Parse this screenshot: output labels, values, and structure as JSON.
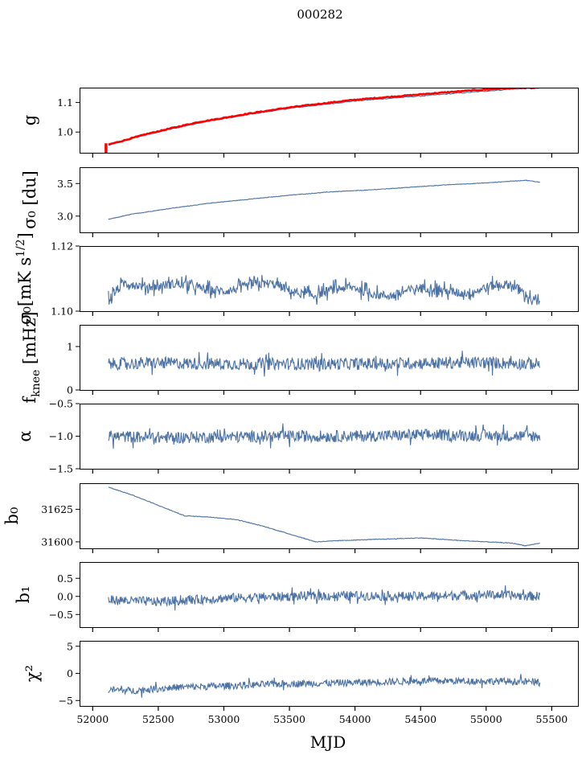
{
  "figure": {
    "title": "000282",
    "xlabel": "MJD",
    "xlim": [
      51900,
      55700
    ],
    "xticks": [
      52000,
      52500,
      53000,
      53500,
      54000,
      54500,
      55000,
      55500
    ],
    "x_range": [
      52120,
      55410
    ]
  },
  "colors": {
    "series": "#4c72a4",
    "overlay": "#ff0000"
  },
  "chart_data": [
    {
      "type": "line",
      "ylabel": "g",
      "ylim": [
        0.93,
        1.15
      ],
      "yticks": [
        1.0,
        1.1
      ],
      "ytick_labels": [
        "1.0",
        "1.1"
      ],
      "series": [
        {
          "x": [
            52120,
            52200,
            52400,
            52600,
            52800,
            53000,
            53200,
            53500,
            53800,
            54000,
            54300,
            54600,
            54900,
            55200,
            55410
          ],
          "values": [
            0.955,
            0.965,
            0.99,
            1.01,
            1.03,
            1.045,
            1.06,
            1.08,
            1.095,
            1.105,
            1.115,
            1.125,
            1.135,
            1.145,
            1.148
          ]
        },
        {
          "x": [
            52120,
            52200,
            52400,
            52600,
            52800,
            53000,
            53200,
            53500,
            53800,
            54000,
            54300,
            54600,
            54900,
            55200,
            55410
          ],
          "values": [
            0.958,
            0.967,
            0.992,
            1.013,
            1.033,
            1.048,
            1.063,
            1.083,
            1.099,
            1.109,
            1.12,
            1.131,
            1.141,
            1.149,
            1.15
          ]
        }
      ]
    },
    {
      "type": "line",
      "ylabel": "σ₀ [du]",
      "ylim": [
        2.75,
        3.75
      ],
      "yticks": [
        3.0,
        3.5
      ],
      "ytick_labels": [
        "3.0",
        "3.5"
      ],
      "series": [
        {
          "x": [
            52120,
            52300,
            52600,
            52900,
            53200,
            53500,
            53800,
            54100,
            54400,
            54700,
            55000,
            55300,
            55410
          ],
          "values": [
            2.95,
            3.03,
            3.12,
            3.2,
            3.26,
            3.32,
            3.37,
            3.4,
            3.44,
            3.48,
            3.51,
            3.55,
            3.52
          ]
        }
      ]
    },
    {
      "type": "line",
      "ylabel": "σ₀[mK s^1/2]",
      "ylim": [
        1.1,
        1.12
      ],
      "yticks": [
        1.1,
        1.12
      ],
      "ytick_labels": [
        "1.10",
        "1.12"
      ],
      "series": [
        {
          "x": [
            52120,
            52250,
            52500,
            52800,
            53100,
            53400,
            53700,
            54000,
            54300,
            54600,
            54900,
            55200,
            55410
          ],
          "values": [
            1.103,
            1.109,
            1.108,
            1.107,
            1.107,
            1.108,
            1.105,
            1.107,
            1.105,
            1.107,
            1.106,
            1.108,
            1.103
          ]
        }
      ]
    },
    {
      "type": "line",
      "ylabel": "f_knee [mHz]",
      "ylim": [
        0,
        1.5
      ],
      "yticks": [
        0,
        1
      ],
      "ytick_labels": [
        "0",
        "1"
      ],
      "series": [
        {
          "x": [
            52120,
            52500,
            53000,
            53500,
            54000,
            54500,
            55000,
            55410
          ],
          "values": [
            0.6,
            0.62,
            0.6,
            0.6,
            0.6,
            0.62,
            0.63,
            0.6
          ]
        }
      ]
    },
    {
      "type": "line",
      "ylabel": "α",
      "ylim": [
        -1.5,
        -0.5
      ],
      "yticks": [
        -1.5,
        -1.0,
        -0.5
      ],
      "ytick_labels": [
        "−1.5",
        "−1.0",
        "−0.5"
      ],
      "series": [
        {
          "x": [
            52120,
            52500,
            53000,
            53500,
            54000,
            54500,
            55000,
            55410
          ],
          "values": [
            -1.0,
            -1.02,
            -1.01,
            -1.0,
            -1.0,
            -0.98,
            -0.99,
            -1.0
          ]
        }
      ]
    },
    {
      "type": "line",
      "ylabel": "b₀",
      "ylim": [
        31595,
        31645
      ],
      "yticks": [
        31600,
        31625
      ],
      "ytick_labels": [
        "31600",
        "31625"
      ],
      "series": [
        {
          "x": [
            52120,
            52300,
            52500,
            52700,
            52900,
            53100,
            53300,
            53500,
            53700,
            53900,
            54200,
            54500,
            54800,
            55000,
            55200,
            55300,
            55410
          ],
          "values": [
            31642,
            31636,
            31628,
            31620,
            31619,
            31617,
            31612,
            31606,
            31600,
            31601,
            31602,
            31603,
            31601,
            31600,
            31599,
            31597,
            31599
          ]
        }
      ]
    },
    {
      "type": "line",
      "ylabel": "b₁",
      "ylim": [
        -0.85,
        0.95
      ],
      "yticks": [
        -0.5,
        0.0,
        0.5
      ],
      "ytick_labels": [
        "−0.5",
        "0.0",
        "0.5"
      ],
      "series": [
        {
          "x": [
            52120,
            52500,
            53000,
            53500,
            54000,
            54500,
            55000,
            55410
          ],
          "values": [
            -0.1,
            -0.15,
            -0.05,
            0.0,
            0.02,
            0.0,
            0.05,
            0.0
          ]
        }
      ]
    },
    {
      "type": "line",
      "ylabel": "χ²",
      "ylim": [
        -6,
        6
      ],
      "yticks": [
        -5,
        0,
        5
      ],
      "ytick_labels": [
        "−5",
        "0",
        "5"
      ],
      "series": [
        {
          "x": [
            52120,
            52300,
            52600,
            53000,
            53500,
            54000,
            54500,
            55000,
            55410
          ],
          "values": [
            -3.0,
            -3.2,
            -2.6,
            -2.3,
            -1.9,
            -1.7,
            -1.4,
            -1.4,
            -1.6
          ]
        }
      ]
    }
  ]
}
